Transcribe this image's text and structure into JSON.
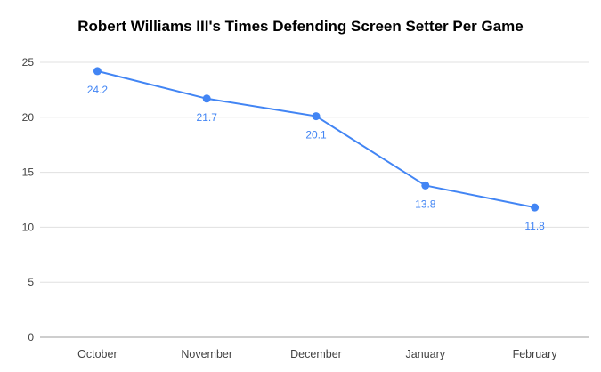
{
  "title": "Robert Williams III's Times Defending Screen Setter Per Game",
  "chart_data": {
    "type": "line",
    "title": "Robert Williams III's Times Defending Screen Setter Per Game",
    "categories": [
      "October",
      "November",
      "December",
      "January",
      "February"
    ],
    "values": [
      24.2,
      21.7,
      20.1,
      13.8,
      11.8
    ],
    "data_labels": [
      "24.2",
      "21.7",
      "20.1",
      "13.8",
      "11.8"
    ],
    "xlabel": "",
    "ylabel": "",
    "ylim": [
      0,
      25
    ],
    "yticks": [
      0,
      5,
      10,
      15,
      20,
      25
    ],
    "grid": "horizontal",
    "legend_position": "none",
    "line_color": "#4285f4",
    "marker_color": "#4285f4",
    "label_color": "#4285f4",
    "grid_color": "#e0e0e0",
    "axis_color": "#9e9e9e",
    "tick_label_color": "#424242"
  }
}
